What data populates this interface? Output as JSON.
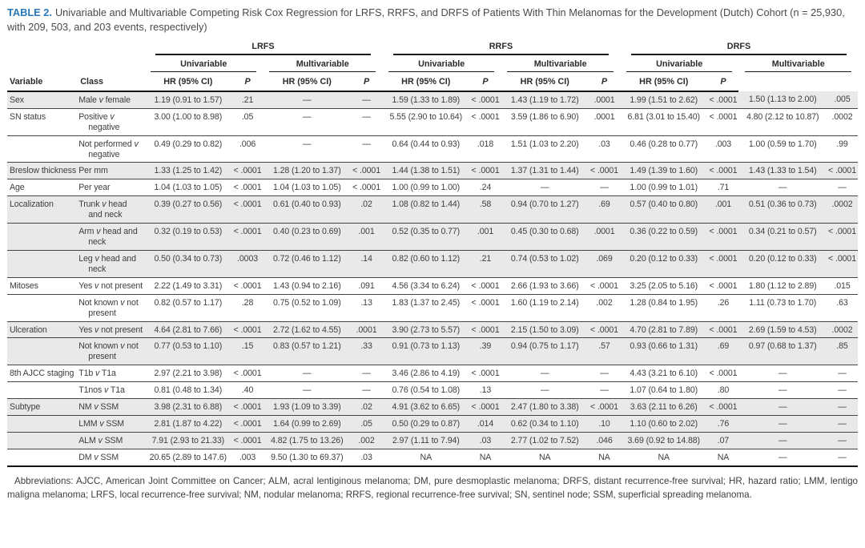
{
  "title": {
    "label": "TABLE 2.",
    "text": "Univariable and Multivariable Competing Risk Cox Regression for LRFS, RRFS, and DRFS of Patients With Thin Melanomas for the Development (Dutch) Cohort (n = 25,930, with 209, 503, and 203 events, respectively)"
  },
  "table": {
    "group_headers": [
      "LRFS",
      "RRFS",
      "DRFS"
    ],
    "subgroup_headers": [
      "Univariable",
      "Multivariable"
    ],
    "column_headers": {
      "variable": "Variable",
      "class": "Class",
      "hr": "HR (95% CI)",
      "p": "P"
    },
    "rows": [
      {
        "variable": "Sex",
        "class": "Male v female",
        "shaded": true,
        "cells": [
          "1.19 (0.91 to 1.57)",
          ".21",
          "—",
          "—",
          "1.59 (1.33 to 1.89)",
          "< .0001",
          "1.43 (1.19 to 1.72)",
          ".0001",
          "1.99 (1.51 to 2.62)",
          "< .0001",
          "1.50 (1.13 to 2.00)",
          ".005"
        ]
      },
      {
        "variable": "SN status",
        "class": "Positive v negative",
        "shaded": false,
        "cells": [
          "3.00 (1.00 to 8.98)",
          ".05",
          "—",
          "—",
          "5.55 (2.90 to 10.64)",
          "< .0001",
          "3.59 (1.86 to 6.90)",
          ".0001",
          "6.81 (3.01 to 15.40)",
          "< .0001",
          "4.80 (2.12 to 10.87)",
          ".0002"
        ]
      },
      {
        "variable": "",
        "class": "Not performed v negative",
        "shaded": false,
        "cells": [
          "0.49 (0.29 to 0.82)",
          ".006",
          "—",
          "—",
          "0.64 (0.44 to 0.93)",
          ".018",
          "1.51 (1.03 to 2.20)",
          ".03",
          "0.46 (0.28 to 0.77)",
          ".003",
          "1.00 (0.59 to 1.70)",
          ".99"
        ]
      },
      {
        "variable": "Breslow thickness",
        "class": "Per mm",
        "shaded": true,
        "cells": [
          "1.33 (1.25 to 1.42)",
          "< .0001",
          "1.28 (1.20 to 1.37)",
          "< .0001",
          "1.44 (1.38 to 1.51)",
          "< .0001",
          "1.37 (1.31 to 1.44)",
          "< .0001",
          "1.49 (1.39 to 1.60)",
          "< .0001",
          "1.43 (1.33 to 1.54)",
          "< .0001"
        ]
      },
      {
        "variable": "Age",
        "class": "Per year",
        "shaded": false,
        "cells": [
          "1.04 (1.03 to 1.05)",
          "< .0001",
          "1.04 (1.03 to 1.05)",
          "< .0001",
          "1.00 (0.99 to 1.00)",
          ".24",
          "—",
          "—",
          "1.00 (0.99 to 1.01)",
          ".71",
          "—",
          "—"
        ]
      },
      {
        "variable": "Localization",
        "class": "Trunk v head and neck",
        "shaded": true,
        "cells": [
          "0.39 (0.27 to 0.56)",
          "< .0001",
          "0.61 (0.40 to 0.93)",
          ".02",
          "1.08 (0.82 to 1.44)",
          ".58",
          "0.94 (0.70 to 1.27)",
          ".69",
          "0.57 (0.40 to 0.80)",
          ".001",
          "0.51 (0.36 to 0.73)",
          ".0002"
        ]
      },
      {
        "variable": "",
        "class": "Arm v head and neck",
        "shaded": true,
        "cells": [
          "0.32 (0.19 to 0.53)",
          "< .0001",
          "0.40 (0.23 to 0.69)",
          ".001",
          "0.52 (0.35 to 0.77)",
          ".001",
          "0.45 (0.30 to 0.68)",
          ".0001",
          "0.36 (0.22 to 0.59)",
          "< .0001",
          "0.34 (0.21 to 0.57)",
          "< .0001"
        ]
      },
      {
        "variable": "",
        "class": "Leg v head and neck",
        "shaded": true,
        "cells": [
          "0.50 (0.34 to 0.73)",
          ".0003",
          "0.72 (0.46 to 1.12)",
          ".14",
          "0.82 (0.60 to 1.12)",
          ".21",
          "0.74 (0.53 to 1.02)",
          ".069",
          "0.20 (0.12 to 0.33)",
          "< .0001",
          "0.20 (0.12 to 0.33)",
          "< .0001"
        ]
      },
      {
        "variable": "Mitoses",
        "class": "Yes v not present",
        "shaded": false,
        "cells": [
          "2.22 (1.49 to 3.31)",
          "< .0001",
          "1.43 (0.94 to 2.16)",
          ".091",
          "4.56 (3.34 to 6.24)",
          "< .0001",
          "2.66 (1.93 to 3.66)",
          "< .0001",
          "3.25 (2.05 to 5.16)",
          "< .0001",
          "1.80 (1.12 to 2.89)",
          ".015"
        ]
      },
      {
        "variable": "",
        "class": "Not known v not present",
        "shaded": false,
        "cells": [
          "0.82 (0.57 to 1.17)",
          ".28",
          "0.75 (0.52 to 1.09)",
          ".13",
          "1.83 (1.37 to 2.45)",
          "< .0001",
          "1.60 (1.19 to 2.14)",
          ".002",
          "1.28 (0.84 to 1.95)",
          ".26",
          "1.11 (0.73 to 1.70)",
          ".63"
        ]
      },
      {
        "variable": "Ulceration",
        "class": "Yes v not present",
        "shaded": true,
        "cells": [
          "4.64 (2.81 to 7.66)",
          "< .0001",
          "2.72 (1.62 to 4.55)",
          ".0001",
          "3.90 (2.73 to 5.57)",
          "< .0001",
          "2.15 (1.50 to 3.09)",
          "< .0001",
          "4.70 (2.81 to 7.89)",
          "< .0001",
          "2.69 (1.59 to 4.53)",
          ".0002"
        ]
      },
      {
        "variable": "",
        "class": "Not known v not present",
        "shaded": true,
        "cells": [
          "0.77 (0.53 to 1.10)",
          ".15",
          "0.83 (0.57 to 1.21)",
          ".33",
          "0.91 (0.73 to 1.13)",
          ".39",
          "0.94 (0.75 to 1.17)",
          ".57",
          "0.93 (0.66 to 1.31)",
          ".69",
          "0.97 (0.68 to 1.37)",
          ".85"
        ]
      },
      {
        "variable": "8th AJCC staging",
        "class": "T1b v T1a",
        "shaded": false,
        "cells": [
          "2.97 (2.21 to 3.98)",
          "< .0001",
          "—",
          "—",
          "3.46 (2.86 to 4.19)",
          "< .0001",
          "—",
          "—",
          "4.43 (3.21 to 6.10)",
          "< .0001",
          "—",
          "—"
        ]
      },
      {
        "variable": "",
        "class": "T1nos v T1a",
        "shaded": false,
        "cells": [
          "0.81 (0.48 to 1.34)",
          ".40",
          "—",
          "—",
          "0.76 (0.54 to 1.08)",
          ".13",
          "—",
          "—",
          "1.07 (0.64 to 1.80)",
          ".80",
          "—",
          "—"
        ]
      },
      {
        "variable": "Subtype",
        "class": "NM v SSM",
        "shaded": true,
        "cells": [
          "3.98 (2.31 to 6.88)",
          "< .0001",
          "1.93 (1.09 to 3.39)",
          ".02",
          "4.91 (3.62 to 6.65)",
          "< .0001",
          "2.47 (1.80 to 3.38)",
          "< .0001",
          "3.63 (2.11 to 6.26)",
          "< .0001",
          "—",
          "—"
        ]
      },
      {
        "variable": "",
        "class": "LMM v SSM",
        "shaded": true,
        "cells": [
          "2.81 (1.87 to 4.22)",
          "< .0001",
          "1.64 (0.99 to 2.69)",
          ".05",
          "0.50 (0.29 to 0.87)",
          ".014",
          "0.62 (0.34 to 1.10)",
          ".10",
          "1.10 (0.60 to 2.02)",
          ".76",
          "—",
          "—"
        ]
      },
      {
        "variable": "",
        "class": "ALM v SSM",
        "shaded": true,
        "cells": [
          "7.91 (2.93 to 21.33)",
          "< .0001",
          "4.82 (1.75 to 13.26)",
          ".002",
          "2.97 (1.11 to 7.94)",
          ".03",
          "2.77 (1.02 to 7.52)",
          ".046",
          "3.69 (0.92 to 14.88)",
          ".07",
          "—",
          "—"
        ]
      },
      {
        "variable": "",
        "class": "DM v SSM",
        "shaded": false,
        "cells": [
          "20.65 (2.89 to 147.6)",
          ".003",
          "9.50 (1.30 to 69.37)",
          ".03",
          "NA",
          "NA",
          "NA",
          "NA",
          "NA",
          "NA",
          "—",
          "—"
        ]
      }
    ]
  },
  "footnote": "Abbreviations: AJCC, American Joint Committee on Cancer; ALM, acral lentiginous melanoma; DM, pure desmoplastic melanoma; DRFS, distant recurrence-free survival; HR, hazard ratio; LMM, lentigo maligna melanoma; LRFS, local recurrence-free survival; NM, nodular melanoma; RRFS, regional recurrence-free survival; SN, sentinel node; SSM, superficial spreading melanoma.",
  "colors": {
    "title_accent": "#2878b9",
    "shaded_row": "#e9e9e9",
    "rule": "#1a1a1a",
    "text": "#3d3d3d"
  }
}
